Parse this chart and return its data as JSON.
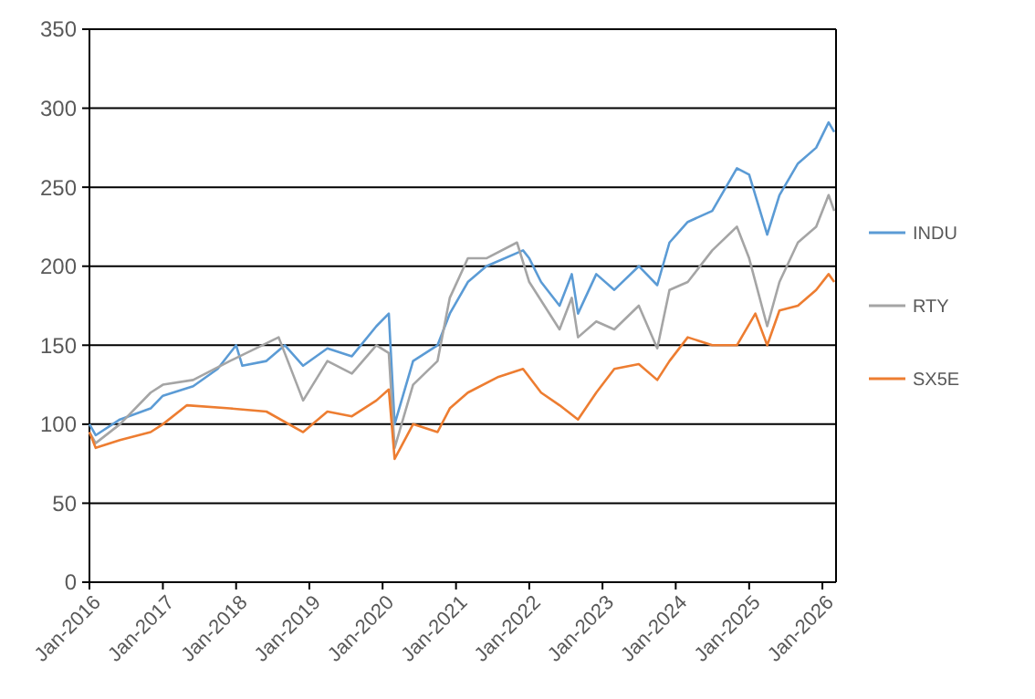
{
  "chart_data": {
    "type": "line",
    "xlim": [
      "2016-01-01",
      "2026-03-10"
    ],
    "ylim": [
      0,
      350
    ],
    "yticks": [
      0,
      50,
      100,
      150,
      200,
      250,
      300,
      350
    ],
    "xticks": [
      {
        "value": "2016-01-01",
        "label": "Jan-2016"
      },
      {
        "value": "2017-01-01",
        "label": "Jan-2017"
      },
      {
        "value": "2018-01-01",
        "label": "Jan-2018"
      },
      {
        "value": "2019-01-01",
        "label": "Jan-2019"
      },
      {
        "value": "2020-01-01",
        "label": "Jan-2020"
      },
      {
        "value": "2021-01-01",
        "label": "Jan-2021"
      },
      {
        "value": "2022-01-01",
        "label": "Jan-2022"
      },
      {
        "value": "2023-01-01",
        "label": "Jan-2023"
      },
      {
        "value": "2024-01-01",
        "label": "Jan-2024"
      },
      {
        "value": "2025-01-01",
        "label": "Jan-2025"
      },
      {
        "value": "2026-01-01",
        "label": "Jan-2026"
      }
    ],
    "grid": "y",
    "legend": "right",
    "marker": "none",
    "line_style": "solid",
    "series": [
      {
        "name": "INDU",
        "color": "#5b9bd5",
        "x": [
          "2016-01",
          "2016-02",
          "2016-06",
          "2016-11",
          "2017-01",
          "2017-06",
          "2017-10",
          "2018-01",
          "2018-02",
          "2018-06",
          "2018-09",
          "2018-12",
          "2019-04",
          "2019-08",
          "2019-12",
          "2020-02",
          "2020-03",
          "2020-06",
          "2020-10",
          "2020-12",
          "2021-03",
          "2021-06",
          "2021-12",
          "2022-01",
          "2022-03",
          "2022-06",
          "2022-08",
          "2022-09",
          "2022-12",
          "2023-03",
          "2023-07",
          "2023-10",
          "2023-12",
          "2024-03",
          "2024-07",
          "2024-11",
          "2025-01",
          "2025-04",
          "2025-06",
          "2025-09",
          "2025-12",
          "2026-02",
          "2026-03"
        ],
        "values": [
          100,
          93,
          103,
          110,
          118,
          124,
          135,
          150,
          137,
          140,
          150,
          137,
          148,
          143,
          162,
          170,
          100,
          140,
          150,
          170,
          190,
          200,
          210,
          205,
          190,
          175,
          195,
          170,
          195,
          185,
          200,
          188,
          215,
          228,
          235,
          262,
          258,
          220,
          245,
          265,
          275,
          291,
          285
        ]
      },
      {
        "name": "RTY",
        "color": "#a5a5a5",
        "x": [
          "2016-01",
          "2016-02",
          "2016-06",
          "2016-11",
          "2017-01",
          "2017-06",
          "2017-12",
          "2018-08",
          "2018-12",
          "2019-04",
          "2019-08",
          "2019-12",
          "2020-02",
          "2020-03",
          "2020-06",
          "2020-10",
          "2020-12",
          "2021-03",
          "2021-06",
          "2021-11",
          "2022-01",
          "2022-06",
          "2022-08",
          "2022-09",
          "2022-12",
          "2023-03",
          "2023-07",
          "2023-10",
          "2023-12",
          "2024-03",
          "2024-07",
          "2024-11",
          "2025-01",
          "2025-04",
          "2025-06",
          "2025-09",
          "2025-12",
          "2026-02",
          "2026-03"
        ],
        "values": [
          95,
          88,
          100,
          120,
          125,
          128,
          140,
          155,
          115,
          140,
          132,
          150,
          145,
          85,
          125,
          140,
          180,
          205,
          205,
          215,
          190,
          160,
          180,
          155,
          165,
          160,
          175,
          148,
          185,
          190,
          210,
          225,
          205,
          162,
          190,
          215,
          225,
          245,
          235
        ]
      },
      {
        "name": "SX5E",
        "color": "#ed7d31",
        "x": [
          "2016-01",
          "2016-02",
          "2016-06",
          "2016-11",
          "2017-01",
          "2017-05",
          "2017-12",
          "2018-06",
          "2018-12",
          "2019-04",
          "2019-08",
          "2019-12",
          "2020-02",
          "2020-03",
          "2020-06",
          "2020-10",
          "2020-12",
          "2021-03",
          "2021-08",
          "2021-12",
          "2022-03",
          "2022-06",
          "2022-09",
          "2022-12",
          "2023-03",
          "2023-07",
          "2023-10",
          "2023-12",
          "2024-03",
          "2024-07",
          "2024-11",
          "2025-02",
          "2025-04",
          "2025-06",
          "2025-09",
          "2025-12",
          "2026-02",
          "2026-03"
        ],
        "values": [
          95,
          85,
          90,
          95,
          100,
          112,
          110,
          108,
          95,
          108,
          105,
          115,
          122,
          78,
          100,
          95,
          110,
          120,
          130,
          135,
          120,
          112,
          103,
          120,
          135,
          138,
          128,
          140,
          155,
          150,
          150,
          170,
          150,
          172,
          175,
          185,
          195,
          190
        ]
      }
    ]
  }
}
